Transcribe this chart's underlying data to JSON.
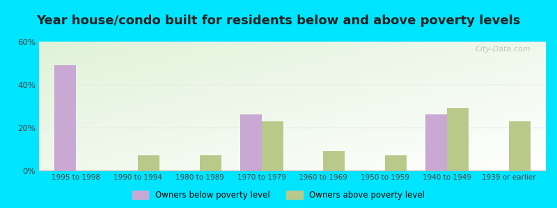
{
  "title": "Year house/condo built for residents below and above poverty levels",
  "categories": [
    "1995 to 1998",
    "1990 to 1994",
    "1980 to 1989",
    "1970 to 1979",
    "1960 to 1969",
    "1950 to 1959",
    "1940 to 1949",
    "1939 or earlier"
  ],
  "below_poverty": [
    49,
    0,
    0,
    26,
    0,
    0,
    26,
    0
  ],
  "above_poverty": [
    0,
    7,
    7,
    23,
    9,
    7,
    29,
    23
  ],
  "below_color": "#c9a8d4",
  "above_color": "#b8c98a",
  "below_label": "Owners below poverty level",
  "above_label": "Owners above poverty level",
  "ylim": [
    0,
    60
  ],
  "yticks": [
    0,
    20,
    40,
    60
  ],
  "ytick_labels": [
    "0%",
    "20%",
    "40%",
    "60%"
  ],
  "outer_bg": "#00e5ff",
  "title_fontsize": 13,
  "bar_width": 0.35,
  "grid_color": "#e8e8e8",
  "axis_label_color": "#444444",
  "title_color": "#222222",
  "legend_marker_color_below": "#d4a8d8",
  "legend_marker_color_above": "#c8cc88"
}
